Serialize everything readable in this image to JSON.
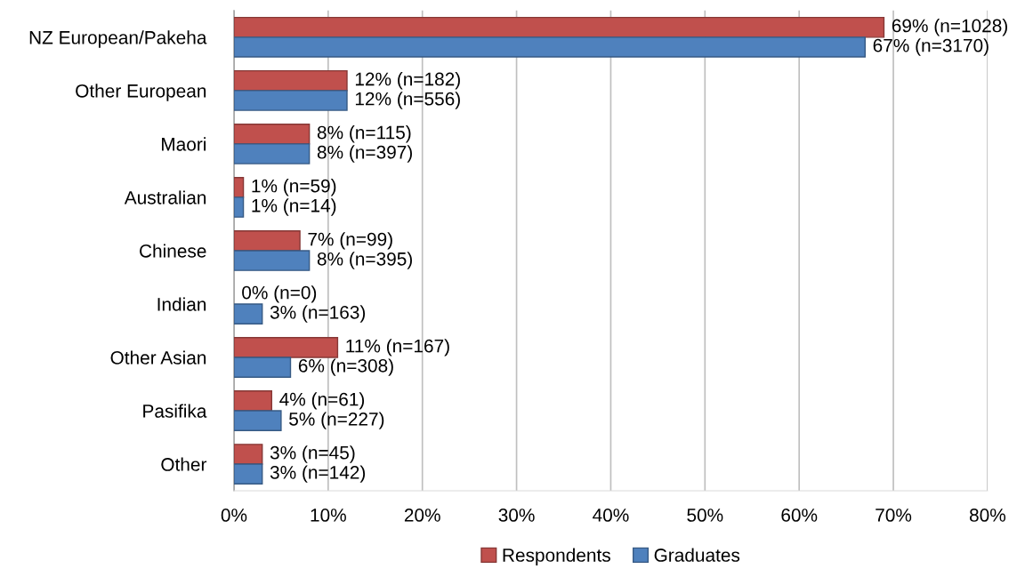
{
  "chart_data": {
    "type": "bar",
    "orientation": "horizontal",
    "categories": [
      "NZ European/Pakeha",
      "Other European",
      "Maori",
      "Australian",
      "Chinese",
      "Indian",
      "Other Asian",
      "Pasifika",
      "Other"
    ],
    "series": [
      {
        "name": "Respondents",
        "color": "#c0504d",
        "values": [
          69,
          12,
          8,
          1,
          7,
          0,
          11,
          4,
          3
        ],
        "value_labels": [
          "69% (n=1028)",
          "12% (n=182)",
          "8% (n=115)",
          "1% (n=59)",
          "7% (n=99)",
          "0% (n=0)",
          "11% (n=167)",
          "4% (n=61)",
          "3% (n=45)"
        ]
      },
      {
        "name": "Graduates",
        "color": "#4f81bd",
        "values": [
          67,
          12,
          8,
          1,
          8,
          3,
          6,
          5,
          3
        ],
        "value_labels": [
          "67% (n=3170)",
          "12% (n=556)",
          "8% (n=397)",
          "1% (n=14)",
          "8% (n=395)",
          "3% (n=163)",
          "6% (n=308)",
          "5% (n=227)",
          "3% (n=142)"
        ]
      }
    ],
    "xlim": [
      0,
      80
    ],
    "xticks": [
      {
        "value": 0,
        "label": "0%"
      },
      {
        "value": 10,
        "label": "10%"
      },
      {
        "value": 20,
        "label": "20%"
      },
      {
        "value": 30,
        "label": "30%"
      },
      {
        "value": 40,
        "label": "40%"
      },
      {
        "value": 50,
        "label": "50%"
      },
      {
        "value": 60,
        "label": "60%"
      },
      {
        "value": 70,
        "label": "70%"
      },
      {
        "value": 80,
        "label": "80%"
      }
    ],
    "grid": "x",
    "legend": "bottom"
  }
}
